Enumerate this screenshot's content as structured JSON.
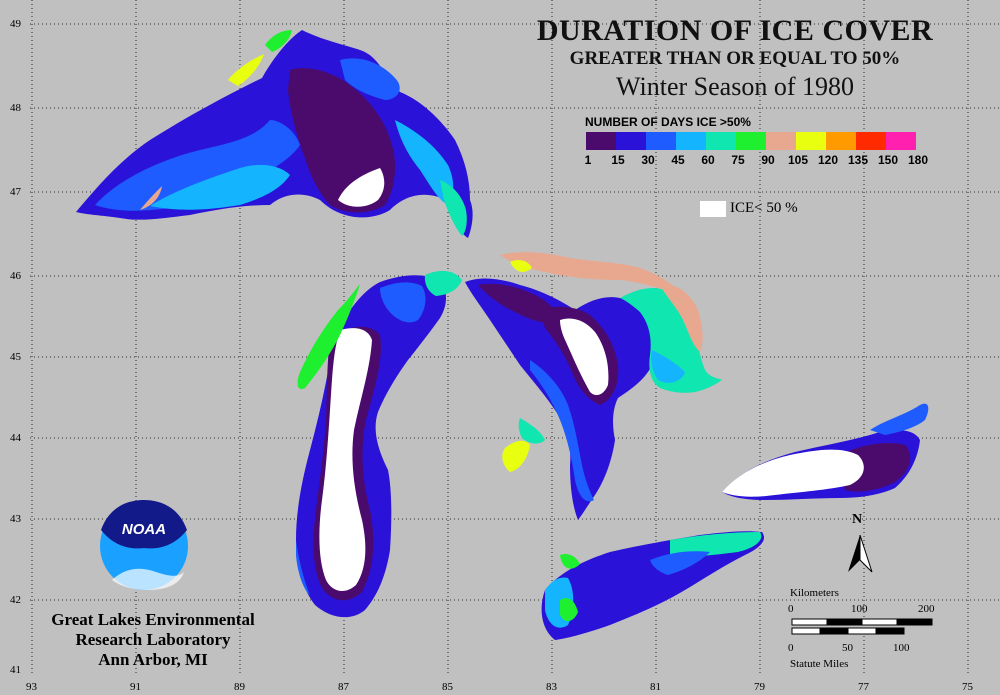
{
  "title": "DURATION OF ICE COVER",
  "subtitle": "GREATER THAN OR EQUAL TO 50%",
  "season": "Winter Season of 1980",
  "legend": {
    "title": "NUMBER OF DAYS ICE >50%",
    "breaks": [
      "1",
      "15",
      "30",
      "45",
      "60",
      "75",
      "90",
      "105",
      "120",
      "135",
      "150",
      "180"
    ],
    "colors": [
      "#4b0b6c",
      "#2a12d8",
      "#1e5cff",
      "#15b4ff",
      "#10e6b0",
      "#1ef030",
      "#e8a890",
      "#e8ff10",
      "#ff9a00",
      "#ff2a00",
      "#ff20b0"
    ],
    "ice_label": "ICE< 50 %",
    "ice_color": "#ffffff"
  },
  "axes": {
    "lat_labels": [
      "49",
      "48",
      "47",
      "46",
      "45",
      "44",
      "43",
      "42",
      "41"
    ],
    "lon_labels": [
      "93",
      "91",
      "89",
      "87",
      "85",
      "83",
      "81",
      "79",
      "77",
      "75"
    ]
  },
  "credit": {
    "line1": "Great Lakes Environmental",
    "line2": "Research Laboratory",
    "line3": "Ann Arbor, MI"
  },
  "logo": {
    "text": "NOAA"
  },
  "north_label": "N",
  "scale": {
    "km_title": "Kilometers",
    "km_ticks": [
      "0",
      "100",
      "200"
    ],
    "mi_ticks": [
      "0",
      "50",
      "100"
    ],
    "mi_title": "Statute Miles"
  }
}
